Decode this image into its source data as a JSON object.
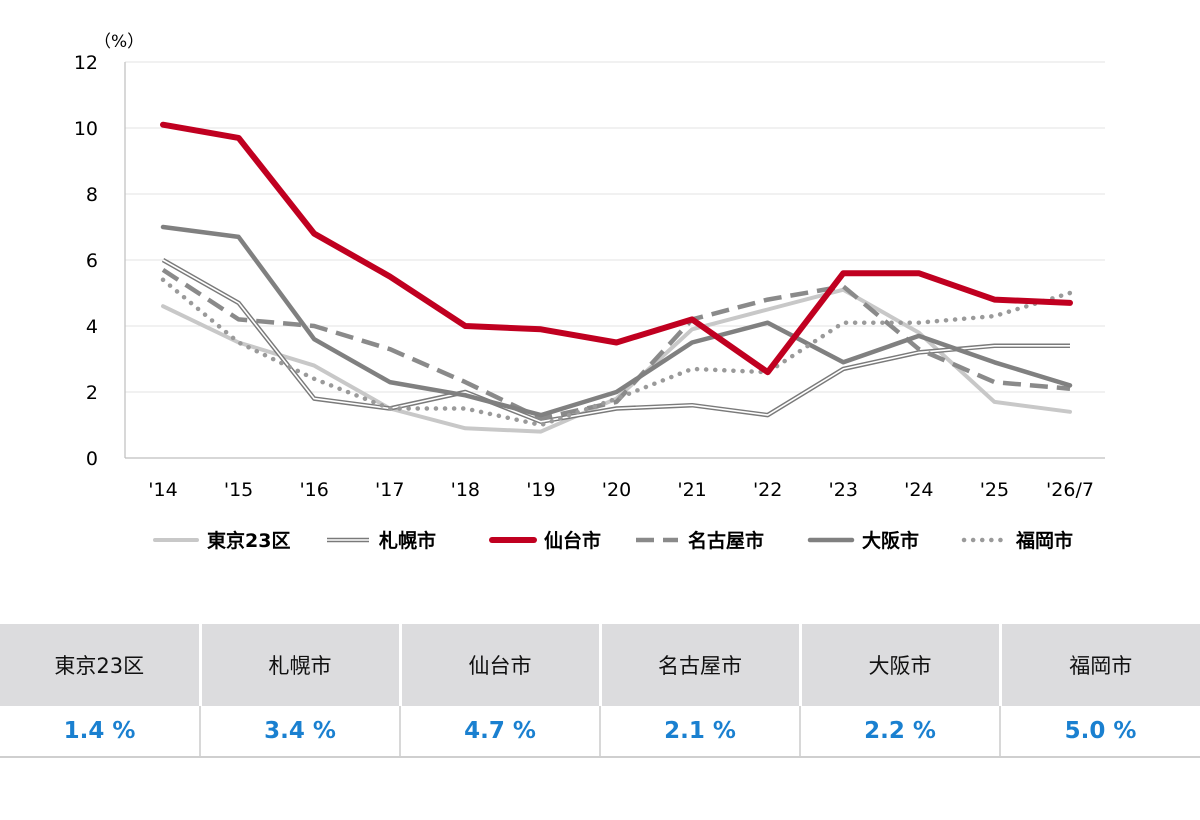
{
  "chart_data": {
    "type": "line",
    "unit_label": "（%）",
    "categories": [
      "'14",
      "'15",
      "'16",
      "'17",
      "'18",
      "'19",
      "'20",
      "'21",
      "'22",
      "'23",
      "'24",
      "'25",
      "'26/7"
    ],
    "ylim": [
      0,
      12
    ],
    "yticks": [
      0,
      2,
      4,
      6,
      8,
      10,
      12
    ],
    "grid": true,
    "legend_position": "bottom",
    "series": [
      {
        "key": "tokyo",
        "name": "東京23区",
        "style": "solid-light",
        "color": "#c8c8c8",
        "values": [
          4.6,
          3.5,
          2.8,
          1.5,
          0.9,
          0.8,
          1.8,
          3.9,
          4.5,
          5.1,
          3.8,
          1.7,
          1.4
        ]
      },
      {
        "key": "sapporo",
        "name": "札幌市",
        "style": "double",
        "color": "#7a7a7a",
        "values": [
          6.0,
          4.7,
          1.8,
          1.5,
          2.0,
          1.1,
          1.5,
          1.6,
          1.3,
          2.7,
          3.2,
          3.4,
          3.4
        ]
      },
      {
        "key": "sendai",
        "name": "仙台市",
        "style": "solid-bold",
        "color": "#c00020",
        "values": [
          10.1,
          9.7,
          6.8,
          5.5,
          4.0,
          3.9,
          3.5,
          4.2,
          2.6,
          5.6,
          5.6,
          4.8,
          4.7
        ]
      },
      {
        "key": "nagoya",
        "name": "名古屋市",
        "style": "dashed",
        "color": "#8a8a8a",
        "values": [
          5.7,
          4.2,
          4.0,
          3.3,
          2.3,
          1.2,
          1.7,
          4.2,
          4.8,
          5.2,
          3.3,
          2.3,
          2.1
        ]
      },
      {
        "key": "osaka",
        "name": "大阪市",
        "style": "solid-medium",
        "color": "#808080",
        "values": [
          7.0,
          6.7,
          3.6,
          2.3,
          1.9,
          1.3,
          2.0,
          3.5,
          4.1,
          2.9,
          3.7,
          2.9,
          2.2
        ]
      },
      {
        "key": "fukuoka",
        "name": "福岡市",
        "style": "dotted",
        "color": "#9a9a9a",
        "values": [
          5.4,
          3.5,
          2.4,
          1.5,
          1.5,
          1.0,
          1.8,
          2.7,
          2.6,
          4.1,
          4.1,
          4.3,
          5.0
        ]
      }
    ]
  },
  "table": {
    "headers": [
      "東京23区",
      "札幌市",
      "仙台市",
      "名古屋市",
      "大阪市",
      "福岡市"
    ],
    "values": [
      "1.4 %",
      "3.4 %",
      "4.7 %",
      "2.1 %",
      "2.2 %",
      "5.0 %"
    ]
  }
}
